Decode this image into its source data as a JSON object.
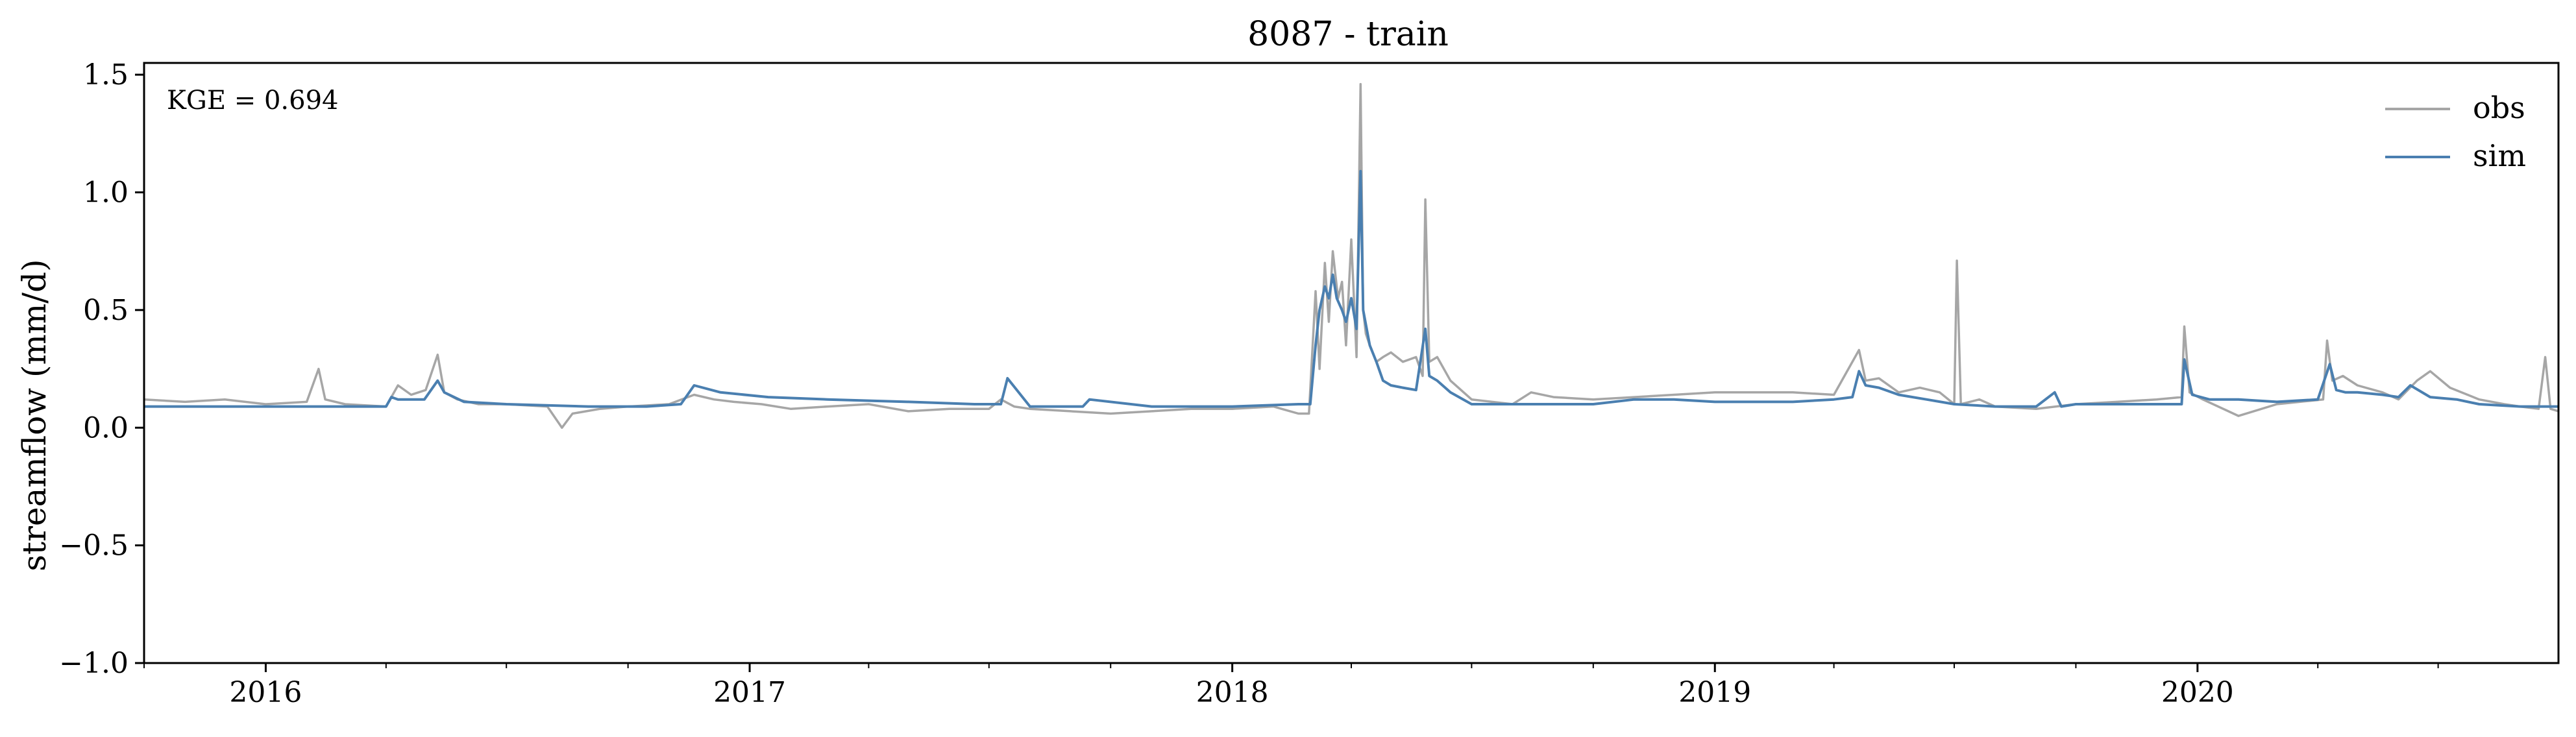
{
  "chart_data": {
    "type": "line",
    "title": "8087 - train",
    "xlabel": "",
    "ylabel": "streamflow (mm/d)",
    "annotation": "KGE = 0.694",
    "xlim": [
      "2015-10-01",
      "2020-09-30"
    ],
    "ylim": [
      -1.0,
      1.55
    ],
    "x_ticks": [
      "2016",
      "2017",
      "2018",
      "2019",
      "2020"
    ],
    "y_ticks": [
      "−1.0",
      "−0.5",
      "0.0",
      "0.5",
      "1.0",
      "1.5"
    ],
    "y_tick_values": [
      -1.0,
      -0.5,
      0.0,
      0.5,
      1.0,
      1.5
    ],
    "grid": false,
    "legend_position": "top-right",
    "series": [
      {
        "name": "obs",
        "color": "#a6a6a6",
        "x": [
          "2015-10-01",
          "2015-11-01",
          "2015-12-01",
          "2016-01-01",
          "2016-02-01",
          "2016-02-10",
          "2016-02-15",
          "2016-03-01",
          "2016-04-01",
          "2016-04-10",
          "2016-04-20",
          "2016-05-01",
          "2016-05-10",
          "2016-05-15",
          "2016-05-25",
          "2016-06-10",
          "2016-07-01",
          "2016-08-01",
          "2016-08-12",
          "2016-08-20",
          "2016-09-10",
          "2016-10-01",
          "2016-11-01",
          "2016-11-20",
          "2016-12-05",
          "2016-12-20",
          "2017-01-10",
          "2017-02-01",
          "2017-03-01",
          "2017-04-01",
          "2017-05-01",
          "2017-06-01",
          "2017-07-01",
          "2017-07-10",
          "2017-07-20",
          "2017-08-01",
          "2017-09-01",
          "2017-10-01",
          "2017-11-01",
          "2017-12-01",
          "2018-01-01",
          "2018-02-01",
          "2018-02-20",
          "2018-02-28",
          "2018-03-05",
          "2018-03-08",
          "2018-03-12",
          "2018-03-15",
          "2018-03-18",
          "2018-03-22",
          "2018-03-25",
          "2018-03-28",
          "2018-04-01",
          "2018-04-05",
          "2018-04-08",
          "2018-04-10",
          "2018-04-12",
          "2018-04-15",
          "2018-04-20",
          "2018-04-25",
          "2018-05-01",
          "2018-05-10",
          "2018-05-20",
          "2018-05-25",
          "2018-05-27",
          "2018-05-30",
          "2018-06-05",
          "2018-06-15",
          "2018-07-01",
          "2018-08-01",
          "2018-08-15",
          "2018-09-01",
          "2018-10-01",
          "2018-11-01",
          "2018-12-01",
          "2019-01-01",
          "2019-02-01",
          "2019-03-01",
          "2019-04-01",
          "2019-04-20",
          "2019-04-25",
          "2019-05-05",
          "2019-05-20",
          "2019-06-05",
          "2019-06-20",
          "2019-07-01",
          "2019-07-03",
          "2019-07-06",
          "2019-07-20",
          "2019-08-01",
          "2019-09-01",
          "2019-10-01",
          "2019-11-01",
          "2019-12-01",
          "2019-12-20",
          "2019-12-22",
          "2019-12-26",
          "2020-01-05",
          "2020-02-01",
          "2020-03-01",
          "2020-04-05",
          "2020-04-08",
          "2020-04-12",
          "2020-04-20",
          "2020-05-01",
          "2020-05-20",
          "2020-06-01",
          "2020-06-15",
          "2020-06-25",
          "2020-07-10",
          "2020-08-01",
          "2020-08-20",
          "2020-09-01",
          "2020-09-15",
          "2020-09-20",
          "2020-09-24",
          "2020-09-30"
        ],
        "y": [
          0.12,
          0.11,
          0.12,
          0.1,
          0.11,
          0.25,
          0.12,
          0.1,
          0.09,
          0.18,
          0.14,
          0.16,
          0.31,
          0.15,
          0.12,
          0.1,
          0.1,
          0.09,
          0.0,
          0.06,
          0.08,
          0.09,
          0.1,
          0.14,
          0.12,
          0.11,
          0.1,
          0.08,
          0.09,
          0.1,
          0.07,
          0.08,
          0.08,
          0.12,
          0.09,
          0.08,
          0.07,
          0.06,
          0.07,
          0.08,
          0.08,
          0.09,
          0.06,
          0.06,
          0.58,
          0.25,
          0.7,
          0.45,
          0.75,
          0.55,
          0.62,
          0.35,
          0.8,
          0.3,
          1.46,
          0.5,
          0.4,
          0.35,
          0.28,
          0.3,
          0.32,
          0.28,
          0.3,
          0.22,
          0.97,
          0.28,
          0.3,
          0.2,
          0.12,
          0.1,
          0.15,
          0.13,
          0.12,
          0.13,
          0.14,
          0.15,
          0.15,
          0.15,
          0.14,
          0.33,
          0.2,
          0.21,
          0.15,
          0.17,
          0.15,
          0.1,
          0.71,
          0.1,
          0.12,
          0.09,
          0.08,
          0.1,
          0.11,
          0.12,
          0.13,
          0.43,
          0.15,
          0.12,
          0.05,
          0.1,
          0.12,
          0.37,
          0.2,
          0.22,
          0.18,
          0.15,
          0.12,
          0.2,
          0.24,
          0.17,
          0.12,
          0.1,
          0.09,
          0.08,
          0.3,
          0.08,
          0.07
        ]
      },
      {
        "name": "sim",
        "color": "#4a7fb0",
        "x": [
          "2015-10-01",
          "2016-01-01",
          "2016-04-01",
          "2016-04-05",
          "2016-04-10",
          "2016-04-30",
          "2016-05-10",
          "2016-05-15",
          "2016-05-30",
          "2016-07-01",
          "2016-09-01",
          "2016-10-15",
          "2016-11-10",
          "2016-11-20",
          "2016-12-10",
          "2017-01-15",
          "2017-03-01",
          "2017-05-01",
          "2017-06-20",
          "2017-07-10",
          "2017-07-15",
          "2017-08-01",
          "2017-09-10",
          "2017-09-15",
          "2017-11-01",
          "2018-01-01",
          "2018-02-20",
          "2018-03-01",
          "2018-03-05",
          "2018-03-08",
          "2018-03-12",
          "2018-03-15",
          "2018-03-18",
          "2018-03-21",
          "2018-03-25",
          "2018-03-28",
          "2018-04-01",
          "2018-04-05",
          "2018-04-08",
          "2018-04-10",
          "2018-04-15",
          "2018-04-20",
          "2018-04-25",
          "2018-05-01",
          "2018-05-10",
          "2018-05-20",
          "2018-05-27",
          "2018-05-30",
          "2018-06-05",
          "2018-06-15",
          "2018-07-01",
          "2018-08-01",
          "2018-09-01",
          "2018-10-01",
          "2018-11-01",
          "2018-12-01",
          "2019-01-01",
          "2019-02-01",
          "2019-03-01",
          "2019-04-01",
          "2019-04-15",
          "2019-04-20",
          "2019-04-25",
          "2019-05-05",
          "2019-05-20",
          "2019-06-10",
          "2019-07-01",
          "2019-08-01",
          "2019-09-01",
          "2019-09-15",
          "2019-09-20",
          "2019-10-01",
          "2019-11-01",
          "2019-12-01",
          "2019-12-20",
          "2019-12-22",
          "2019-12-28",
          "2020-01-10",
          "2020-02-01",
          "2020-03-01",
          "2020-04-01",
          "2020-04-10",
          "2020-04-15",
          "2020-04-22",
          "2020-05-01",
          "2020-05-20",
          "2020-06-01",
          "2020-06-10",
          "2020-06-25",
          "2020-07-15",
          "2020-08-01",
          "2020-09-01",
          "2020-09-20",
          "2020-09-30"
        ],
        "y": [
          0.09,
          0.09,
          0.09,
          0.13,
          0.12,
          0.12,
          0.2,
          0.15,
          0.11,
          0.1,
          0.09,
          0.09,
          0.1,
          0.18,
          0.15,
          0.13,
          0.12,
          0.11,
          0.1,
          0.1,
          0.21,
          0.09,
          0.09,
          0.12,
          0.09,
          0.09,
          0.1,
          0.1,
          0.35,
          0.5,
          0.6,
          0.55,
          0.65,
          0.55,
          0.5,
          0.45,
          0.55,
          0.42,
          1.09,
          0.5,
          0.35,
          0.28,
          0.2,
          0.18,
          0.17,
          0.16,
          0.42,
          0.22,
          0.2,
          0.15,
          0.1,
          0.1,
          0.1,
          0.1,
          0.12,
          0.12,
          0.11,
          0.11,
          0.11,
          0.12,
          0.13,
          0.24,
          0.18,
          0.17,
          0.14,
          0.12,
          0.1,
          0.09,
          0.09,
          0.15,
          0.09,
          0.1,
          0.1,
          0.1,
          0.1,
          0.29,
          0.14,
          0.12,
          0.12,
          0.11,
          0.12,
          0.27,
          0.16,
          0.15,
          0.15,
          0.14,
          0.13,
          0.18,
          0.13,
          0.12,
          0.1,
          0.09,
          0.09,
          0.09
        ]
      }
    ]
  }
}
